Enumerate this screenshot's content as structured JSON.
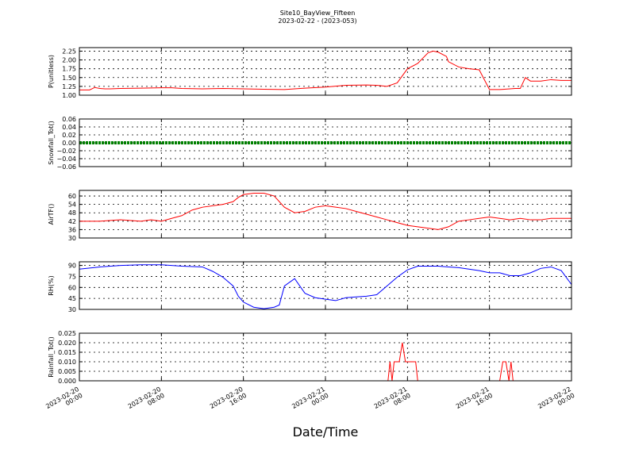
{
  "title": "Site10_BayView_Fifteen",
  "subtitle": "2023-02-22 - (2023-053)",
  "xlabel": "Date/Time",
  "x_ticks": [
    {
      "line1": "2023-02-20",
      "line2": "00:00"
    },
    {
      "line1": "2023-02-20",
      "line2": "08:00"
    },
    {
      "line1": "2023-02-20",
      "line2": "16:00"
    },
    {
      "line1": "2023-02-21",
      "line2": "00:00"
    },
    {
      "line1": "2023-02-21",
      "line2": "08:00"
    },
    {
      "line1": "2023-02-21",
      "line2": "16:00"
    },
    {
      "line1": "2023-02-22",
      "line2": "00:00"
    }
  ],
  "chart_data": [
    {
      "type": "line",
      "ylabel": "P(unitless)",
      "ylim": [
        1.0,
        2.35
      ],
      "yticks": [
        "1.00",
        "1.25",
        "1.50",
        "1.75",
        "2.00",
        "2.25"
      ],
      "xlim": [
        0,
        48
      ],
      "grid": true,
      "series": [
        {
          "color": "#ff0000",
          "x": [
            0,
            1,
            1.5,
            2,
            2.5,
            3,
            4,
            6,
            8,
            9,
            10,
            12,
            14,
            16,
            18,
            20,
            22,
            24,
            26,
            28,
            29,
            30,
            31,
            32,
            33,
            34,
            34.5,
            35,
            35.8,
            36,
            37,
            38,
            39,
            40,
            41,
            42,
            42.5,
            43.0,
            43.5,
            44,
            45,
            46,
            47,
            48
          ],
          "y": [
            1.15,
            1.15,
            1.22,
            1.19,
            1.18,
            1.18,
            1.19,
            1.2,
            1.21,
            1.21,
            1.19,
            1.18,
            1.19,
            1.18,
            1.17,
            1.16,
            1.2,
            1.23,
            1.28,
            1.29,
            1.28,
            1.25,
            1.35,
            1.75,
            1.9,
            2.2,
            2.25,
            2.22,
            2.1,
            1.95,
            1.8,
            1.75,
            1.72,
            1.16,
            1.16,
            1.18,
            1.19,
            1.19,
            1.5,
            1.4,
            1.4,
            1.44,
            1.42,
            1.42
          ]
        }
      ]
    },
    {
      "type": "line",
      "ylabel": "Snowfall_Tot()",
      "ylim": [
        -0.06,
        0.06
      ],
      "yticks": [
        "−0.06",
        "−0.04",
        "−0.02",
        "0.00",
        "0.02",
        "0.04",
        "0.06"
      ],
      "xlim": [
        0,
        48
      ],
      "grid": true,
      "series": [
        {
          "color": "#008000",
          "x": [
            0,
            48
          ],
          "y": [
            0.0,
            0.0
          ]
        }
      ]
    },
    {
      "type": "line",
      "ylabel": "AirTF()",
      "ylim": [
        30,
        64
      ],
      "yticks": [
        "30",
        "36",
        "42",
        "48",
        "54",
        "60"
      ],
      "xlim": [
        0,
        48
      ],
      "grid": true,
      "series": [
        {
          "color": "#ff0000",
          "x": [
            0,
            2,
            4,
            6,
            7,
            8,
            9,
            10,
            11,
            12,
            13,
            14,
            15,
            15.5,
            16,
            17,
            18,
            19,
            20,
            21,
            22,
            23,
            24,
            25,
            26,
            27,
            28,
            29,
            30,
            31,
            32,
            33,
            34,
            35,
            36,
            37,
            38,
            39,
            40,
            41,
            42,
            43,
            44,
            45,
            46,
            47,
            48
          ],
          "y": [
            42,
            42,
            43,
            42,
            43,
            42,
            44,
            46,
            50,
            52,
            53,
            54,
            56,
            59,
            61,
            62,
            62,
            60,
            52,
            48,
            49,
            52,
            53,
            52,
            51,
            49,
            47,
            45,
            43,
            41,
            39,
            38,
            37,
            36,
            38,
            42,
            43,
            44,
            45,
            44,
            43,
            44,
            43,
            43,
            44,
            44,
            44
          ]
        }
      ]
    },
    {
      "type": "line",
      "ylabel": "RH(%)",
      "ylim": [
        30,
        95
      ],
      "yticks": [
        "30",
        "45",
        "60",
        "75",
        "90"
      ],
      "xlim": [
        0,
        48
      ],
      "grid": true,
      "series": [
        {
          "color": "#0000ff",
          "x": [
            0,
            2,
            4,
            6,
            8,
            10,
            12,
            13,
            14,
            15,
            15.5,
            16,
            17,
            18,
            19,
            19.5,
            20,
            21,
            22,
            23,
            24,
            25,
            26,
            27,
            28,
            29,
            30,
            31,
            32,
            33,
            34,
            35,
            36,
            37,
            38,
            39,
            40,
            41,
            42,
            43,
            44,
            45,
            46,
            47,
            48
          ],
          "y": [
            85,
            88,
            90,
            91,
            91,
            89,
            88,
            82,
            74,
            62,
            48,
            40,
            33,
            31,
            33,
            36,
            62,
            72,
            52,
            46,
            44,
            42,
            46,
            47,
            48,
            50,
            62,
            74,
            84,
            89,
            89,
            89,
            88,
            87,
            85,
            83,
            80,
            80,
            76,
            76,
            80,
            86,
            88,
            83,
            64
          ]
        }
      ]
    },
    {
      "type": "line",
      "ylabel": "Rainfall_Tot()",
      "ylim": [
        0.0,
        0.025
      ],
      "yticks": [
        "0.000",
        "0.005",
        "0.010",
        "0.015",
        "0.020",
        "0.025"
      ],
      "xlim": [
        0,
        48
      ],
      "grid": true,
      "series": [
        {
          "color": "#ff0000",
          "x": [
            0,
            30.1,
            30.3,
            30.5,
            30.7,
            31.2,
            31.5,
            31.8,
            32.0,
            32.3,
            32.8,
            33.0,
            41.0,
            41.3,
            41.6,
            41.9,
            42.1,
            42.3,
            42.5,
            48
          ],
          "y": [
            0,
            0,
            0.01,
            0,
            0.01,
            0.01,
            0.02,
            0.01,
            0.01,
            0.01,
            0.01,
            0,
            0,
            0.01,
            0.01,
            0,
            0.01,
            0,
            0,
            0
          ]
        }
      ]
    }
  ]
}
